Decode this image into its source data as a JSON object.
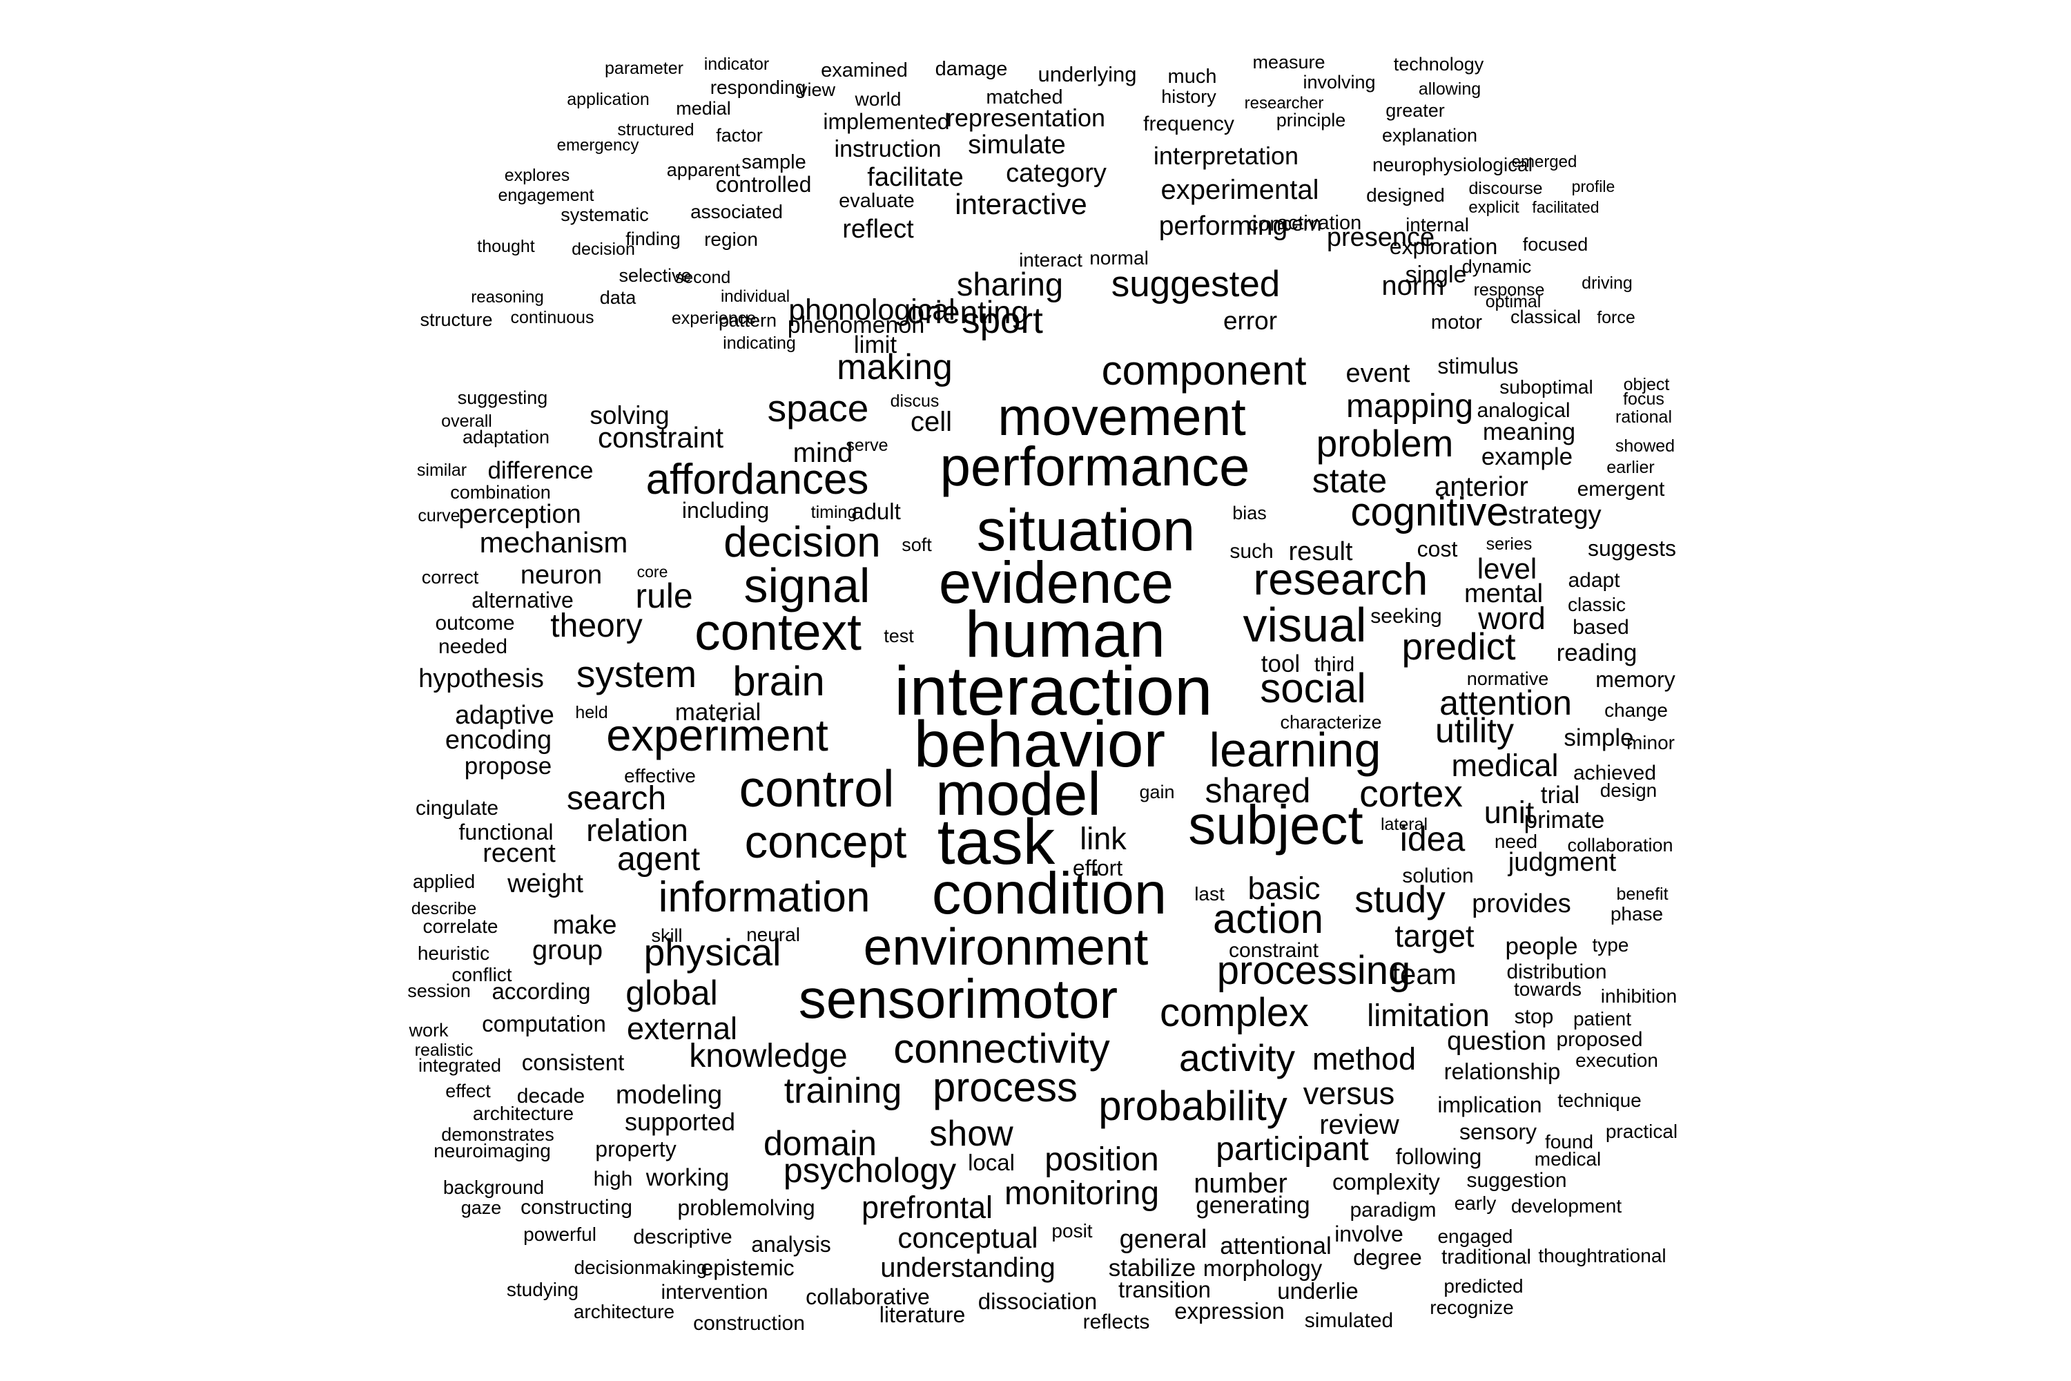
{
  "words": [
    "parameter",
    "indicator",
    "examined",
    "damage",
    "underlying",
    "much",
    "measure",
    "technology",
    "responding",
    "view",
    "world",
    "matched",
    "history",
    "involving",
    "allowing",
    "application",
    "medial",
    "implemented",
    "representation",
    "researcher",
    "greater",
    "structured",
    "factor",
    "frequency",
    "principle",
    "emergency",
    "instruction",
    "simulate",
    "explanation",
    "sample",
    "interpretation",
    "apparent",
    "neurophysiological",
    "emerged",
    "explores",
    "controlled",
    "facilitate",
    "category",
    "discourse",
    "profile",
    "engagement",
    "evaluate",
    "experimental",
    "designed",
    "facilitated",
    "systematic",
    "associated",
    "interactive",
    "concern",
    "internal",
    "explicit",
    "finding",
    "region",
    "reflect",
    "performing",
    "presence",
    "activation",
    "exploration",
    "focused",
    "thought",
    "decision",
    "normal",
    "dynamic",
    "driving",
    "selective",
    "second",
    "interact",
    "suggested",
    "single",
    "response",
    "individual",
    "phenomenon",
    "sharing",
    "norm",
    "reasoning",
    "data",
    "pattern",
    "experience",
    "phonological",
    "orienting",
    "optimal",
    "force",
    "error",
    "classical",
    "structure",
    "continuous",
    "indicating",
    "limit",
    "sport",
    "motor",
    "making",
    "event",
    "stimulus",
    "object",
    "suboptimal",
    "component",
    "suggesting",
    "discus",
    "mapping",
    "focus",
    "overall",
    "solving",
    "analogical",
    "space",
    "cell",
    "adaptation",
    "constraint",
    "movement",
    "rational",
    "meaning",
    "showed",
    "mind",
    "serve",
    "similar",
    "difference",
    "problem",
    "example",
    "earlier",
    "combination",
    "performance",
    "affordances",
    "state",
    "anterior",
    "emergent",
    "curve",
    "perception",
    "including",
    "timing",
    "adult",
    "bias",
    "cognitive",
    "strategy",
    "mechanism",
    "soft",
    "series",
    "suggests",
    "such",
    "decision",
    "situation",
    "result",
    "cost",
    "correct",
    "neuron",
    "core",
    "research",
    "level",
    "adapt",
    "alternative",
    "rule",
    "signal",
    "evidence",
    "mental",
    "classic",
    "outcome",
    "theory",
    "seeking",
    "word",
    "needed",
    "test",
    "context",
    "human",
    "visual",
    "based",
    "predict",
    "reading",
    "tool",
    "third",
    "hypothesis",
    "system",
    "brain",
    "normative",
    "memory",
    "social",
    "held",
    "material",
    "interaction",
    "attention",
    "adaptive",
    "change",
    "characterize",
    "encoding",
    "experiment",
    "learning",
    "utility",
    "simple",
    "minor",
    "propose",
    "behavior",
    "medical",
    "achieved",
    "effective",
    "shared",
    "cingulate",
    "search",
    "control",
    "model",
    "gain",
    "cortex",
    "trial",
    "design",
    "unit",
    "functional",
    "relation",
    "subject",
    "lateral",
    "idea",
    "primate",
    "link",
    "need",
    "collaboration",
    "recent",
    "agent",
    "concept",
    "task",
    "judgment",
    "effort",
    "applied",
    "weight",
    "solution",
    "last",
    "basic",
    "benefit",
    "information",
    "condition",
    "study",
    "provides",
    "describe",
    "phase",
    "make",
    "action",
    "correlate",
    "skill",
    "neural",
    "target",
    "heuristic",
    "group",
    "physical",
    "constraint",
    "people",
    "type",
    "environment",
    "conflict",
    "distribution",
    "processing",
    "team",
    "session",
    "according",
    "global",
    "towards",
    "inhibition",
    "work",
    "computation",
    "external",
    "sensorimotor",
    "complex",
    "limitation",
    "stop",
    "patient",
    "realistic",
    "question",
    "proposed",
    "integrated",
    "consistent",
    "knowledge",
    "connectivity",
    "activity",
    "method",
    "relationship",
    "execution",
    "effect",
    "decade",
    "modeling",
    "training",
    "process",
    "versus",
    "implication",
    "technique",
    "architecture",
    "probability",
    "demonstrates",
    "supported",
    "sensory",
    "review",
    "neuroimaging",
    "property",
    "show",
    "found",
    "practical",
    "domain",
    "participant",
    "following",
    "medical",
    "local",
    "position",
    "high",
    "working",
    "psychology",
    "background",
    "number",
    "complexity",
    "suggestion",
    "gaze",
    "constructing",
    "problemolving",
    "prefrontal",
    "monitoring",
    "generating",
    "paradigm",
    "early",
    "development",
    "posit",
    "powerful",
    "descriptive",
    "analysis",
    "conceptual",
    "general",
    "attentional",
    "involve",
    "engaged",
    "degree",
    "traditional",
    "thoughtrational",
    "decisionmaking",
    "epistemic",
    "understanding",
    "stabilize",
    "morphology",
    "studying",
    "intervention",
    "predicted",
    "transition",
    "underlie",
    "collaborative",
    "dissociation",
    "architecture",
    "literature",
    "expression",
    "recognize",
    "construction",
    "reflects",
    "simulated"
  ]
}
